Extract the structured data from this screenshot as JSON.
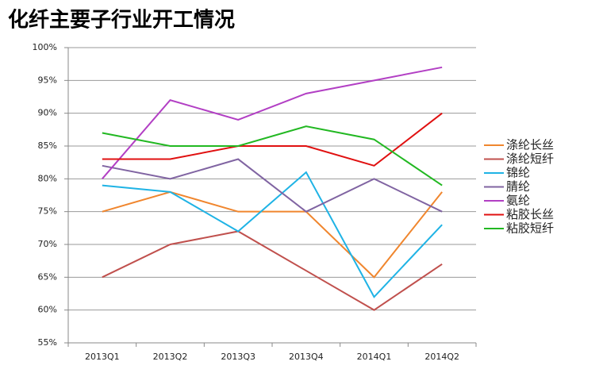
{
  "chart_data": {
    "type": "line",
    "title": "化纤主要子行业开工情况",
    "categories": [
      "2013Q1",
      "2013Q2",
      "2013Q3",
      "2013Q4",
      "2014Q1",
      "2014Q2"
    ],
    "series": [
      {
        "name": "涤纶长丝",
        "color": "#f0862e",
        "values": [
          75,
          78,
          75,
          75,
          65,
          78
        ]
      },
      {
        "name": "涤纶短纤",
        "color": "#c0504d",
        "values": [
          65,
          70,
          72,
          66,
          60,
          67
        ]
      },
      {
        "name": "锦纶",
        "color": "#1fb3e5",
        "values": [
          79,
          78,
          72,
          81,
          62,
          73
        ]
      },
      {
        "name": "腈纶",
        "color": "#8064a2",
        "values": [
          82,
          80,
          83,
          75,
          80,
          75
        ]
      },
      {
        "name": "氨纶",
        "color": "#b23fc4",
        "values": [
          80,
          92,
          89,
          93,
          95,
          97
        ]
      },
      {
        "name": "粘胶长丝",
        "color": "#e01010",
        "values": [
          83,
          83,
          85,
          85,
          82,
          90
        ]
      },
      {
        "name": "粘胶短纤",
        "color": "#22b822",
        "values": [
          87,
          85,
          85,
          88,
          86,
          79
        ]
      }
    ],
    "ylim": [
      55,
      100
    ],
    "yticks": [
      {
        "value": 55,
        "label": "55%"
      },
      {
        "value": 60,
        "label": "60%"
      },
      {
        "value": 65,
        "label": "65%"
      },
      {
        "value": 70,
        "label": "70%"
      },
      {
        "value": 75,
        "label": "75%"
      },
      {
        "value": 80,
        "label": "80%"
      },
      {
        "value": 85,
        "label": "85%"
      },
      {
        "value": 90,
        "label": "90%"
      },
      {
        "value": 95,
        "label": "95%"
      },
      {
        "value": 100,
        "label": "100%"
      }
    ],
    "grid": true,
    "legend": "right"
  }
}
